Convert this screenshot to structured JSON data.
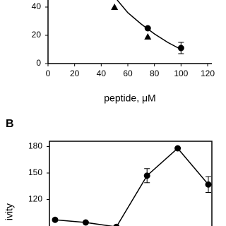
{
  "chart_data": [
    {
      "type": "scatter",
      "xlabel": "peptide, μM",
      "xlim": [
        0,
        120
      ],
      "xticks": [
        0,
        20,
        40,
        60,
        80,
        100,
        120
      ],
      "ylim": [
        0,
        45
      ],
      "yticks": [
        0,
        20,
        40
      ],
      "series": [
        {
          "marker": "triangle",
          "color": "#000000",
          "x": [
            50,
            75
          ],
          "values": [
            40,
            19
          ]
        },
        {
          "marker": "circle",
          "color": "#000000",
          "x": [
            75,
            100
          ],
          "values": [
            25,
            11
          ],
          "errors": [
            null,
            4
          ]
        },
        {
          "marker": "curve",
          "color": "#000000",
          "x": [
            52,
            60,
            70,
            80,
            90,
            100
          ],
          "values": [
            45,
            36,
            28,
            21,
            15,
            10
          ]
        }
      ]
    },
    {
      "type": "line",
      "panel_label": "B",
      "ylabel": "ivity",
      "categories": [
        null,
        null,
        null,
        null,
        null,
        null
      ],
      "ylim": [
        90,
        186
      ],
      "yticks": [
        120,
        150,
        180
      ],
      "color": "#000000",
      "values": [
        97,
        94,
        89,
        147,
        178,
        137
      ],
      "errors": [
        null,
        null,
        null,
        8,
        null,
        9
      ]
    }
  ]
}
